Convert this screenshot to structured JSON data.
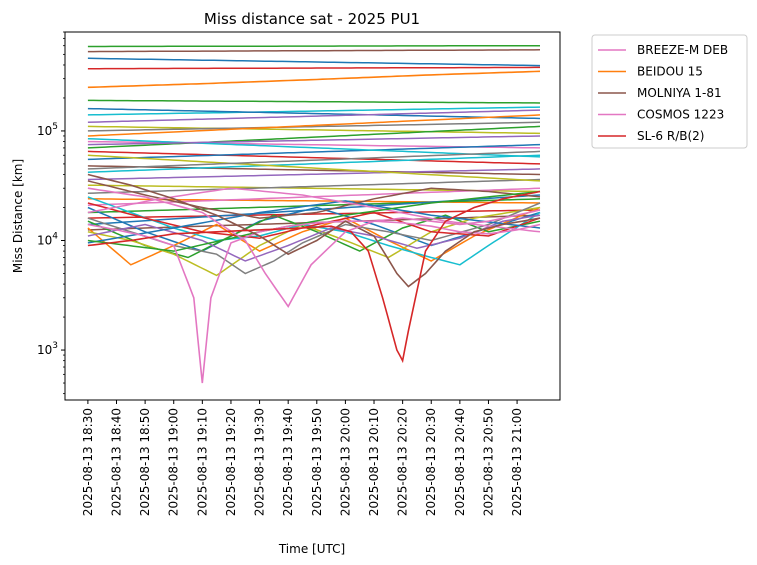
{
  "chart_data": {
    "type": "line",
    "title": "Miss distance sat - 2025 PU1",
    "xlabel": "Time [UTC]",
    "ylabel": "Miss Distance [km]",
    "yscale": "log",
    "ylim": [
      350,
      800000
    ],
    "xlim_minutes": [
      -8,
      165
    ],
    "x_ticks": [
      {
        "minute": 0,
        "label": "2025-08-13 18:30"
      },
      {
        "minute": 10,
        "label": "2025-08-13 18:40"
      },
      {
        "minute": 20,
        "label": "2025-08-13 18:50"
      },
      {
        "minute": 30,
        "label": "2025-08-13 19:00"
      },
      {
        "minute": 40,
        "label": "2025-08-13 19:10"
      },
      {
        "minute": 50,
        "label": "2025-08-13 19:20"
      },
      {
        "minute": 60,
        "label": "2025-08-13 19:30"
      },
      {
        "minute": 70,
        "label": "2025-08-13 19:40"
      },
      {
        "minute": 80,
        "label": "2025-08-13 19:50"
      },
      {
        "minute": 90,
        "label": "2025-08-13 20:00"
      },
      {
        "minute": 100,
        "label": "2025-08-13 20:10"
      },
      {
        "minute": 110,
        "label": "2025-08-13 20:20"
      },
      {
        "minute": 120,
        "label": "2025-08-13 20:30"
      },
      {
        "minute": 130,
        "label": "2025-08-13 20:40"
      },
      {
        "minute": 140,
        "label": "2025-08-13 20:50"
      },
      {
        "minute": 150,
        "label": "2025-08-13 21:00"
      }
    ],
    "y_ticks": [
      {
        "value": 1000,
        "base": "10",
        "exp": "3"
      },
      {
        "value": 10000,
        "base": "10",
        "exp": "4"
      },
      {
        "value": 100000,
        "base": "10",
        "exp": "5"
      }
    ],
    "legend_position": "outside-right",
    "series": [
      {
        "name": "BREEZE-M DEB",
        "color": "#e377c2",
        "x": [
          0,
          10,
          20,
          30,
          37,
          40,
          43,
          50,
          60,
          70,
          80,
          90,
          100,
          110,
          120,
          130,
          140,
          150,
          158
        ],
        "values": [
          14000,
          12500,
          11000,
          9000,
          3000,
          500,
          3000,
          9500,
          12000,
          13500,
          14500,
          15000,
          15000,
          14500,
          13500,
          12000,
          11500,
          12500,
          14000
        ]
      },
      {
        "name": "BEIDOU 15",
        "color": "#ff7f0e",
        "x": [
          0,
          40,
          80,
          120,
          158
        ],
        "values": [
          250000,
          270000,
          295000,
          325000,
          350000
        ]
      },
      {
        "name": "MOLNIYA 1-81",
        "color": "#8c564b",
        "x": [
          0,
          15,
          30,
          45,
          60,
          70,
          80,
          90,
          100,
          108,
          112,
          118,
          125,
          135,
          145,
          158
        ],
        "values": [
          40000,
          32000,
          24000,
          17000,
          11000,
          7500,
          10000,
          15000,
          11000,
          5000,
          3800,
          5000,
          8000,
          12000,
          14000,
          16000
        ]
      },
      {
        "name": "COSMOS 1223",
        "color": "#e377c2",
        "x": [
          0,
          20,
          40,
          55,
          62,
          70,
          78,
          90,
          100,
          110,
          120,
          130,
          140,
          150,
          158
        ],
        "values": [
          30000,
          25000,
          18000,
          10000,
          5000,
          2500,
          6000,
          12000,
          15000,
          16000,
          15000,
          14000,
          15000,
          17000,
          19000
        ]
      },
      {
        "name": "SL-6 R/B(2)",
        "color": "#d62728",
        "x": [
          0,
          15,
          30,
          45,
          60,
          75,
          85,
          92,
          98,
          103,
          108,
          110,
          112,
          118,
          125,
          135,
          145,
          158
        ],
        "values": [
          9000,
          10000,
          11500,
          12000,
          12500,
          13000,
          13500,
          12000,
          8000,
          3000,
          1000,
          800,
          1500,
          8000,
          15000,
          20000,
          24000,
          28000
        ]
      }
    ],
    "background_series": [
      {
        "color": "#2ca02c",
        "x": [
          0,
          158
        ],
        "values": [
          590000,
          600000
        ]
      },
      {
        "color": "#1f77b4",
        "x": [
          0,
          158
        ],
        "values": [
          460000,
          395000
        ]
      },
      {
        "color": "#d62728",
        "x": [
          0,
          158
        ],
        "values": [
          370000,
          380000
        ]
      },
      {
        "color": "#8c564b",
        "x": [
          0,
          158
        ],
        "values": [
          530000,
          550000
        ]
      },
      {
        "color": "#2ca02c",
        "x": [
          0,
          158
        ],
        "values": [
          190000,
          180000
        ]
      },
      {
        "color": "#17becf",
        "x": [
          0,
          158
        ],
        "values": [
          140000,
          165000
        ]
      },
      {
        "color": "#1f77b4",
        "x": [
          0,
          158
        ],
        "values": [
          160000,
          130000
        ]
      },
      {
        "color": "#9467bd",
        "x": [
          0,
          158
        ],
        "values": [
          120000,
          155000
        ]
      },
      {
        "color": "#bcbd22",
        "x": [
          0,
          158
        ],
        "values": [
          110000,
          95000
        ]
      },
      {
        "color": "#7f7f7f",
        "x": [
          0,
          158
        ],
        "values": [
          100000,
          120000
        ]
      },
      {
        "color": "#ff7f0e",
        "x": [
          0,
          158
        ],
        "values": [
          90000,
          140000
        ]
      },
      {
        "color": "#e377c2",
        "x": [
          0,
          158
        ],
        "values": [
          80000,
          70000
        ]
      },
      {
        "color": "#2ca02c",
        "x": [
          0,
          158
        ],
        "values": [
          70000,
          110000
        ]
      },
      {
        "color": "#d62728",
        "x": [
          0,
          158
        ],
        "values": [
          65000,
          50000
        ]
      },
      {
        "color": "#1f77b4",
        "x": [
          0,
          158
        ],
        "values": [
          55000,
          75000
        ]
      },
      {
        "color": "#8c564b",
        "x": [
          0,
          158
        ],
        "values": [
          48000,
          40000
        ]
      },
      {
        "color": "#17becf",
        "x": [
          0,
          158
        ],
        "values": [
          42000,
          60000
        ]
      },
      {
        "color": "#9467bd",
        "x": [
          0,
          158
        ],
        "values": [
          36000,
          45000
        ]
      },
      {
        "color": "#bcbd22",
        "x": [
          0,
          158
        ],
        "values": [
          32000,
          28000
        ]
      },
      {
        "color": "#7f7f7f",
        "x": [
          0,
          158
        ],
        "values": [
          27000,
          36000
        ]
      },
      {
        "color": "#ff7f0e",
        "x": [
          0,
          158
        ],
        "values": [
          24000,
          22000
        ]
      },
      {
        "color": "#e377c2",
        "x": [
          0,
          158
        ],
        "values": [
          21000,
          30000
        ]
      },
      {
        "color": "#2ca02c",
        "x": [
          0,
          158
        ],
        "values": [
          18000,
          24000
        ]
      },
      {
        "color": "#d62728",
        "x": [
          0,
          158
        ],
        "values": [
          16000,
          19000
        ]
      },
      {
        "color": "#1f77b4",
        "x": [
          0,
          158
        ],
        "values": [
          14000,
          26000
        ]
      },
      {
        "color": "#8c564b",
        "x": [
          0,
          158
        ],
        "values": [
          12500,
          17000
        ]
      },
      {
        "color": "#17becf",
        "x": [
          0,
          158
        ],
        "values": [
          85000,
          58000
        ]
      },
      {
        "color": "#9467bd",
        "x": [
          0,
          158
        ],
        "values": [
          75000,
          90000
        ]
      },
      {
        "color": "#bcbd22",
        "x": [
          0,
          158
        ],
        "values": [
          60000,
          35000
        ]
      },
      {
        "color": "#7f7f7f",
        "x": [
          0,
          158
        ],
        "values": [
          45000,
          65000
        ]
      },
      {
        "color": "#1f77b4",
        "x": [
          0,
          20,
          40,
          60,
          80,
          100,
          120,
          140,
          158
        ],
        "values": [
          20000,
          12000,
          8000,
          15000,
          20000,
          14000,
          9000,
          13000,
          18000
        ]
      },
      {
        "color": "#ff7f0e",
        "x": [
          0,
          15,
          30,
          45,
          60,
          75,
          90,
          105,
          120,
          135,
          158
        ],
        "values": [
          13000,
          6000,
          9000,
          14000,
          8000,
          12000,
          16000,
          10000,
          6500,
          11000,
          20000
        ]
      },
      {
        "color": "#2ca02c",
        "x": [
          0,
          20,
          35,
          50,
          65,
          80,
          95,
          110,
          125,
          140,
          158
        ],
        "values": [
          15000,
          9000,
          7000,
          11000,
          17000,
          12000,
          8000,
          13000,
          17000,
          12000,
          15000
        ]
      },
      {
        "color": "#bcbd22",
        "x": [
          0,
          15,
          30,
          45,
          60,
          75,
          90,
          105,
          120,
          135,
          158
        ],
        "values": [
          12000,
          10000,
          7500,
          4800,
          9000,
          14000,
          10000,
          7000,
          12000,
          16000,
          20000
        ]
      },
      {
        "color": "#17becf",
        "x": [
          0,
          15,
          30,
          45,
          60,
          75,
          90,
          105,
          120,
          130,
          140,
          158
        ],
        "values": [
          25000,
          18000,
          13000,
          10000,
          11000,
          14000,
          12000,
          9000,
          7000,
          6000,
          9000,
          18000
        ]
      },
      {
        "color": "#7f7f7f",
        "x": [
          0,
          15,
          30,
          45,
          55,
          65,
          75,
          90,
          105,
          120,
          140,
          158
        ],
        "values": [
          16000,
          12000,
          9000,
          7500,
          5000,
          6500,
          9500,
          14000,
          12000,
          10000,
          14000,
          22000
        ]
      },
      {
        "color": "#9467bd",
        "x": [
          0,
          20,
          40,
          55,
          70,
          85,
          100,
          115,
          130,
          145,
          158
        ],
        "values": [
          11000,
          14000,
          10000,
          6500,
          9000,
          13000,
          11000,
          8500,
          10500,
          15000,
          17000
        ]
      },
      {
        "color": "#d62728",
        "x": [
          0,
          20,
          40,
          60,
          80,
          100,
          120,
          140,
          158
        ],
        "values": [
          22000,
          16000,
          12000,
          10500,
          14000,
          18000,
          12000,
          11000,
          16000
        ]
      },
      {
        "color": "#1f77b4",
        "x": [
          0,
          30,
          60,
          90,
          120,
          158
        ],
        "values": [
          9500,
          13000,
          18000,
          23000,
          17000,
          13000
        ]
      },
      {
        "color": "#8c564b",
        "x": [
          0,
          20,
          40,
          60,
          80,
          100,
          120,
          140,
          158
        ],
        "values": [
          35000,
          26000,
          20000,
          16000,
          18000,
          24000,
          30000,
          28000,
          25000
        ]
      },
      {
        "color": "#e377c2",
        "x": [
          0,
          25,
          50,
          75,
          100,
          125,
          158
        ],
        "values": [
          18000,
          24000,
          30000,
          26000,
          20000,
          15000,
          12000
        ]
      },
      {
        "color": "#2ca02c",
        "x": [
          0,
          30,
          60,
          90,
          120,
          158
        ],
        "values": [
          10000,
          8000,
          12000,
          17000,
          22000,
          28000
        ]
      }
    ]
  }
}
